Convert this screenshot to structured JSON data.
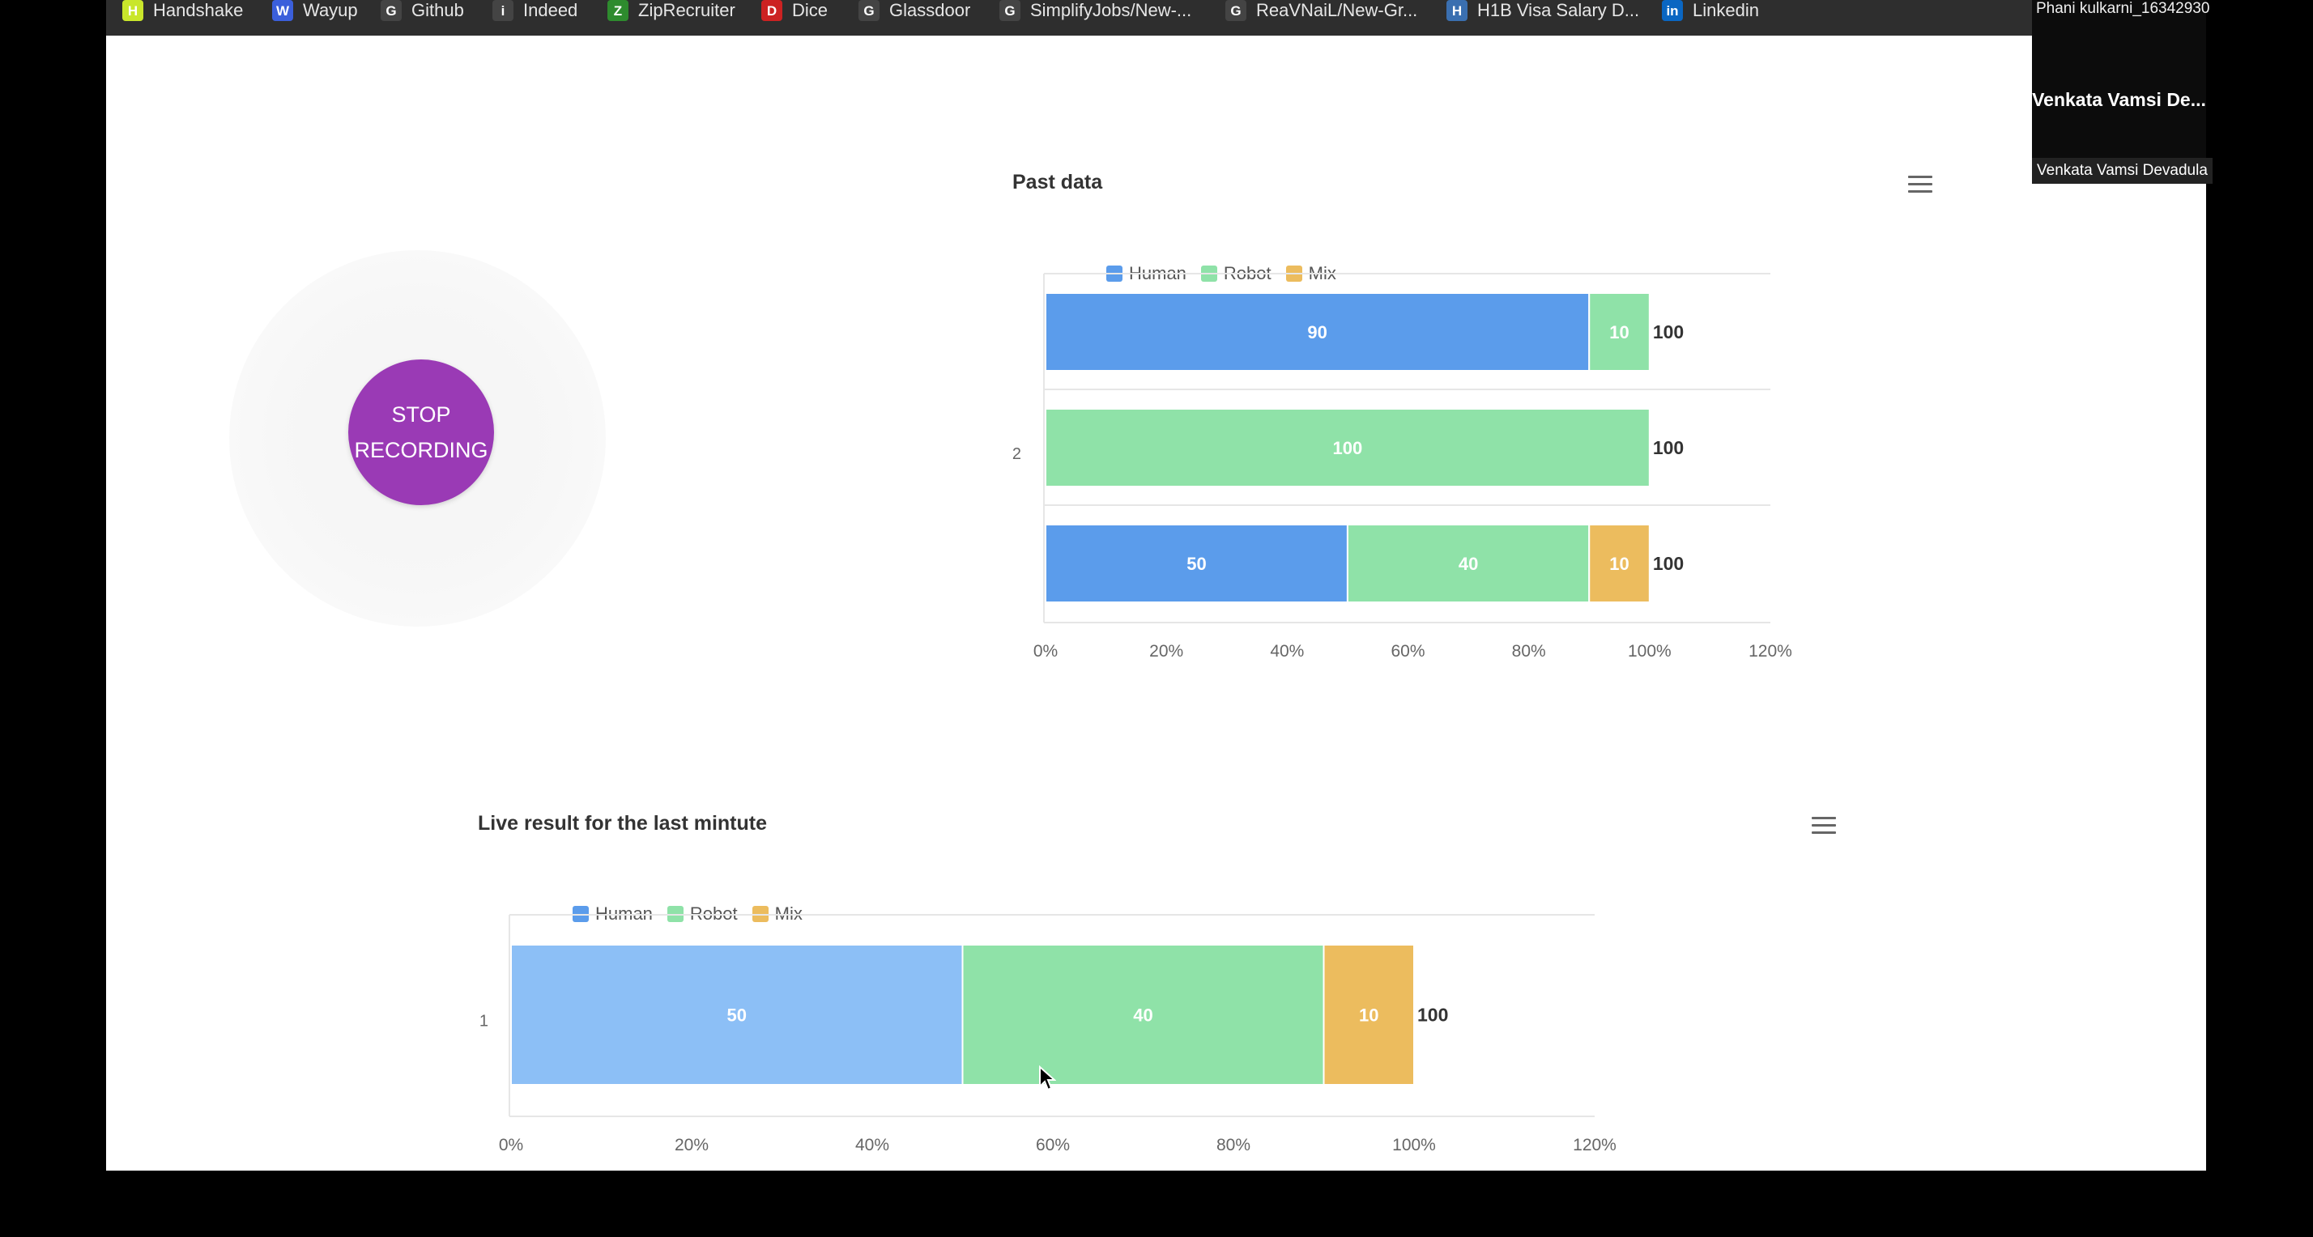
{
  "bookmarks": [
    {
      "label": "Handshake",
      "icon": "handshake-icon",
      "color": "#c9e62b",
      "glyph": "H"
    },
    {
      "label": "Wayup",
      "icon": "wayup-icon",
      "color": "#3b5fdb",
      "glyph": "W"
    },
    {
      "label": "Github",
      "icon": "github-icon",
      "color": "#444444",
      "glyph": "G"
    },
    {
      "label": "Indeed",
      "icon": "indeed-icon",
      "color": "#444444",
      "glyph": "i"
    },
    {
      "label": "ZipRecruiter",
      "icon": "ziprecruiter-icon",
      "color": "#2e8b2e",
      "glyph": "Z"
    },
    {
      "label": "Dice",
      "icon": "dice-icon",
      "color": "#cc2222",
      "glyph": "D"
    },
    {
      "label": "Glassdoor",
      "icon": "glassdoor-icon",
      "color": "#444444",
      "glyph": "G"
    },
    {
      "label": "SimplifyJobs/New-...",
      "icon": "github-icon",
      "color": "#444444",
      "glyph": "G"
    },
    {
      "label": "ReaVNaiL/New-Gr...",
      "icon": "github-icon",
      "color": "#444444",
      "glyph": "G"
    },
    {
      "label": "H1B Visa Salary D...",
      "icon": "h1b-icon",
      "color": "#3a6fb0",
      "glyph": "H"
    },
    {
      "label": "Linkedin",
      "icon": "linkedin-icon",
      "color": "#0a66c2",
      "glyph": "in"
    }
  ],
  "record_button": {
    "line1": "STOP",
    "line2": "RECORDING"
  },
  "past_chart": {
    "title": "Past data",
    "menu_icon": "hamburger-menu-icon"
  },
  "live_chart": {
    "title": "Live result for the last mintute",
    "menu_icon": "hamburger-menu-icon"
  },
  "participant": {
    "top_label": "Phani kulkarni_16342930",
    "center_name": "Venkata Vamsi De...",
    "bottom_name": "Venkata Vamsi Devadula"
  },
  "colors": {
    "human": "#5b9ceb",
    "human_highlight": "#8cbff6",
    "robot": "#8fe2a8",
    "mix": "#ecbc5e",
    "record": "#9a3ab5"
  },
  "chart_data": [
    {
      "type": "bar",
      "orientation": "horizontal",
      "stacked": true,
      "title": "Past data",
      "legend": [
        "Human",
        "Robot",
        "Mix"
      ],
      "legend_position": "top-left",
      "categories": [
        "",
        "2",
        ""
      ],
      "series": [
        {
          "name": "Human",
          "values": [
            90,
            0,
            50
          ]
        },
        {
          "name": "Robot",
          "values": [
            10,
            100,
            40
          ]
        },
        {
          "name": "Mix",
          "values": [
            0,
            0,
            10
          ]
        }
      ],
      "totals": [
        100,
        100,
        100
      ],
      "x_ticks": [
        "0%",
        "20%",
        "40%",
        "60%",
        "80%",
        "100%",
        "120%"
      ],
      "xlim": [
        0,
        120
      ],
      "grid": true
    },
    {
      "type": "bar",
      "orientation": "horizontal",
      "stacked": true,
      "title": "Live result for the last mintute",
      "legend": [
        "Human",
        "Robot",
        "Mix"
      ],
      "legend_position": "top-left",
      "categories": [
        "1"
      ],
      "series": [
        {
          "name": "Human",
          "values": [
            50
          ]
        },
        {
          "name": "Robot",
          "values": [
            40
          ]
        },
        {
          "name": "Mix",
          "values": [
            10
          ]
        }
      ],
      "totals": [
        100
      ],
      "x_ticks": [
        "0%",
        "20%",
        "40%",
        "60%",
        "80%",
        "100%",
        "120%"
      ],
      "xlim": [
        0,
        120
      ],
      "grid": true
    }
  ]
}
